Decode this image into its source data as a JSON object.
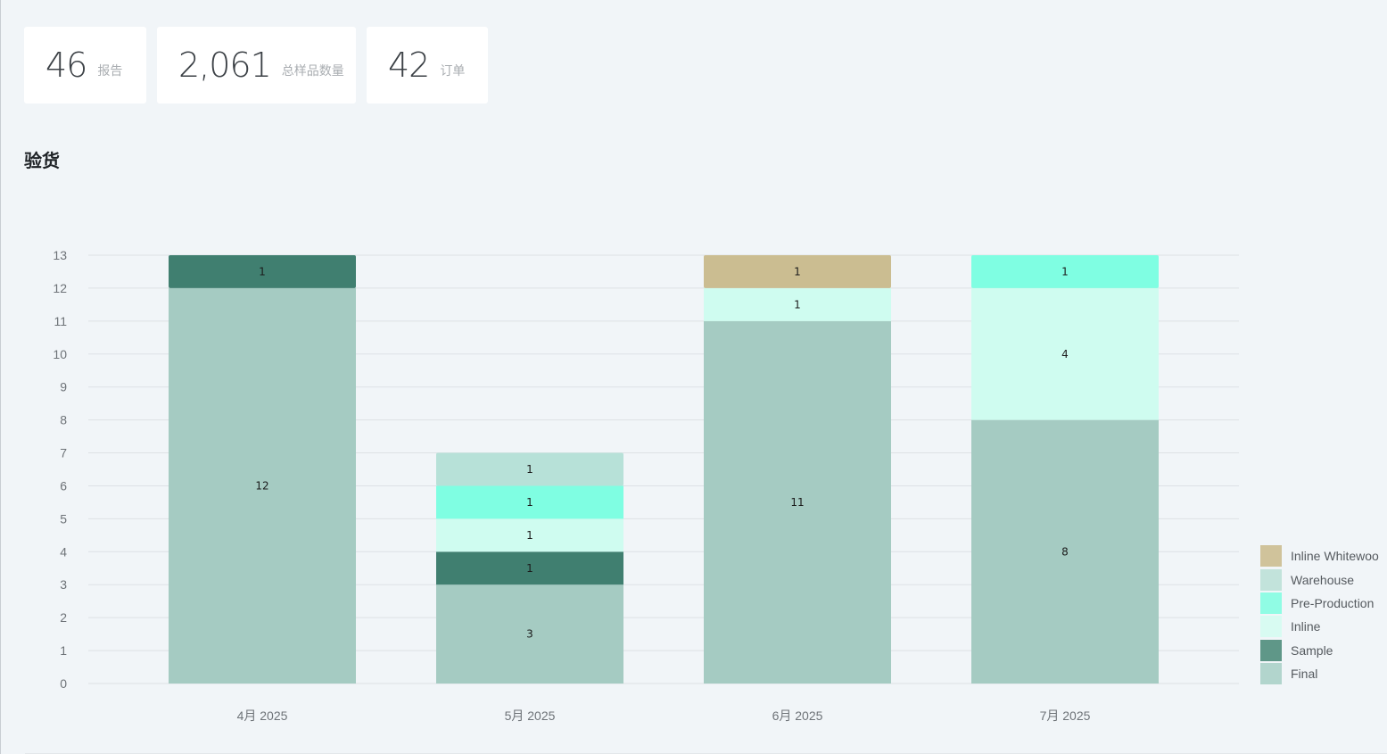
{
  "stats": [
    {
      "value": "46",
      "label": "报告"
    },
    {
      "value": "2,061",
      "label": "总样品数量"
    },
    {
      "value": "42",
      "label": "订单"
    }
  ],
  "section_title": "验货",
  "chart_data": {
    "type": "bar",
    "stacked": true,
    "title": "",
    "xlabel": "",
    "ylabel": "",
    "categories": [
      "4月 2025",
      "5月 2025",
      "6月 2025",
      "7月 2025"
    ],
    "ylim": [
      0,
      13
    ],
    "yticks": [
      0,
      1,
      2,
      3,
      4,
      5,
      6,
      7,
      8,
      9,
      10,
      11,
      12,
      13
    ],
    "grid": true,
    "legend_position": "bottom-right",
    "series": [
      {
        "name": "Final",
        "color": "#a5cbc2",
        "legend_color": "#b2d5cd",
        "values": [
          12,
          3,
          11,
          8
        ]
      },
      {
        "name": "Sample",
        "color": "#407f70",
        "legend_color": "#5f9788",
        "values": [
          1,
          1,
          0,
          0
        ]
      },
      {
        "name": "Inline",
        "color": "#cffcf0",
        "legend_color": "#d8fbf2",
        "values": [
          0,
          1,
          1,
          4
        ]
      },
      {
        "name": "Pre-Production",
        "color": "#7ffee2",
        "legend_color": "#90fce4",
        "values": [
          0,
          1,
          0,
          1
        ]
      },
      {
        "name": "Warehouse",
        "color": "#b7e1d8",
        "legend_color": "#c2e3db",
        "values": [
          0,
          1,
          0,
          0
        ]
      },
      {
        "name": "Inline Whitewoo",
        "color": "#cbbd91",
        "legend_color": "#d0c39b",
        "values": [
          0,
          0,
          1,
          0
        ]
      }
    ]
  }
}
